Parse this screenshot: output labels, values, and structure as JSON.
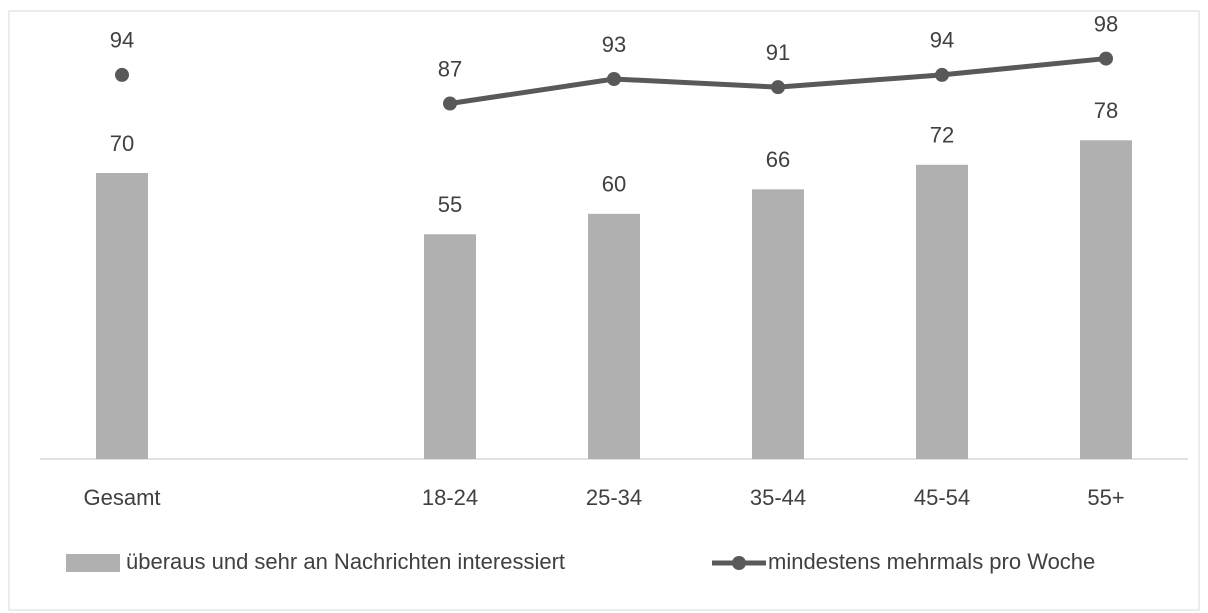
{
  "chart_data": {
    "type": "bar+line",
    "categories": [
      "Gesamt",
      null,
      "18-24",
      "25-34",
      "35-44",
      "45-54",
      "55+"
    ],
    "series": [
      {
        "name": "überaus und sehr an Nachrichten interessiert",
        "type": "bar",
        "color": "#b0b0b0",
        "values": [
          70,
          null,
          55,
          60,
          66,
          72,
          78
        ]
      },
      {
        "name": "mindestens mehrmals pro Woche",
        "type": "line",
        "color": "#595959",
        "values": [
          94,
          null,
          87,
          93,
          91,
          94,
          98
        ]
      }
    ],
    "ylim": [
      0,
      100
    ],
    "legend": "bottom"
  }
}
